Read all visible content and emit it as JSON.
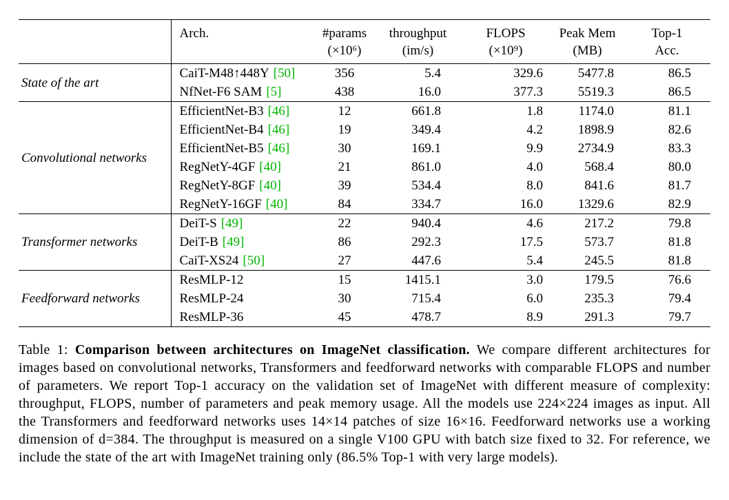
{
  "colors": {
    "citation_green": "#00b400",
    "text": "#000000",
    "background": "#ffffff"
  },
  "table": {
    "header": {
      "arch": "Arch.",
      "cols": [
        {
          "line1": "#params",
          "line2": "(×10⁶)"
        },
        {
          "line1": "throughput",
          "line2": "(im/s)"
        },
        {
          "line1": "FLOPS",
          "line2": "(×10⁹)"
        },
        {
          "line1": "Peak Mem",
          "line2": "(MB)"
        },
        {
          "line1": "Top-1",
          "line2": "Acc."
        }
      ]
    },
    "groups": [
      {
        "label": "State of the art",
        "rows": [
          {
            "arch": "CaiT-M48↑448Υ",
            "cite": "[50]",
            "params": "356",
            "throughput": "5.4",
            "flops": "329.6",
            "peak_mem": "5477.8",
            "top1": "86.5"
          },
          {
            "arch": "NfNet-F6 SAM",
            "cite": "[5]",
            "params": "438",
            "throughput": "16.0",
            "flops": "377.3",
            "peak_mem": "5519.3",
            "top1": "86.5"
          }
        ]
      },
      {
        "label": "Convolutional networks",
        "rows": [
          {
            "arch": "EfficientNet-B3",
            "cite": "[46]",
            "params": "12",
            "throughput": "661.8",
            "flops": "1.8",
            "peak_mem": "1174.0",
            "top1": "81.1"
          },
          {
            "arch": "EfficientNet-B4",
            "cite": "[46]",
            "params": "19",
            "throughput": "349.4",
            "flops": "4.2",
            "peak_mem": "1898.9",
            "top1": "82.6"
          },
          {
            "arch": "EfficientNet-B5",
            "cite": "[46]",
            "params": "30",
            "throughput": "169.1",
            "flops": "9.9",
            "peak_mem": "2734.9",
            "top1": "83.3"
          },
          {
            "arch": "RegNetY-4GF",
            "cite": "[40]",
            "params": "21",
            "throughput": "861.0",
            "flops": "4.0",
            "peak_mem": "568.4",
            "top1": "80.0"
          },
          {
            "arch": "RegNetY-8GF",
            "cite": "[40]",
            "params": "39",
            "throughput": "534.4",
            "flops": "8.0",
            "peak_mem": "841.6",
            "top1": "81.7"
          },
          {
            "arch": "RegNetY-16GF",
            "cite": "[40]",
            "params": "84",
            "throughput": "334.7",
            "flops": "16.0",
            "peak_mem": "1329.6",
            "top1": "82.9"
          }
        ]
      },
      {
        "label": "Transformer networks",
        "rows": [
          {
            "arch": "DeiT-S",
            "cite": "[49]",
            "params": "22",
            "throughput": "940.4",
            "flops": "4.6",
            "peak_mem": "217.2",
            "top1": "79.8"
          },
          {
            "arch": "DeiT-B",
            "cite": "[49]",
            "params": "86",
            "throughput": "292.3",
            "flops": "17.5",
            "peak_mem": "573.7",
            "top1": "81.8"
          },
          {
            "arch": "CaiT-XS24",
            "cite": "[50]",
            "params": "27",
            "throughput": "447.6",
            "flops": "5.4",
            "peak_mem": "245.5",
            "top1": "81.8"
          }
        ]
      },
      {
        "label": "Feedforward networks",
        "rows": [
          {
            "arch": "ResMLP-12",
            "cite": "",
            "params": "15",
            "throughput": "1415.1",
            "flops": "3.0",
            "peak_mem": "179.5",
            "top1": "76.6"
          },
          {
            "arch": "ResMLP-24",
            "cite": "",
            "params": "30",
            "throughput": "715.4",
            "flops": "6.0",
            "peak_mem": "235.3",
            "top1": "79.4"
          },
          {
            "arch": "ResMLP-36",
            "cite": "",
            "params": "45",
            "throughput": "478.7",
            "flops": "8.9",
            "peak_mem": "291.3",
            "top1": "79.7"
          }
        ]
      }
    ]
  },
  "caption": {
    "label": "Table 1: ",
    "bold": "Comparison between architectures on ImageNet classification.",
    "body": " We compare different architectures for images based on convolutional networks, Transformers and feedforward networks with comparable FLOPS and number of parameters. We report Top-1 accuracy on the validation set of ImageNet with different measure of complexity: throughput, FLOPS, number of parameters and peak memory usage. All the models use 224×224 images as input. All the Transformers and feedforward networks uses 14×14 patches of size 16×16. Feedforward networks use a working dimension of d=384. The throughput is measured on a single V100 GPU with batch size fixed to 32. For reference, we include the state of the art with ImageNet training only (86.5% Top-1 with very large models)."
  }
}
